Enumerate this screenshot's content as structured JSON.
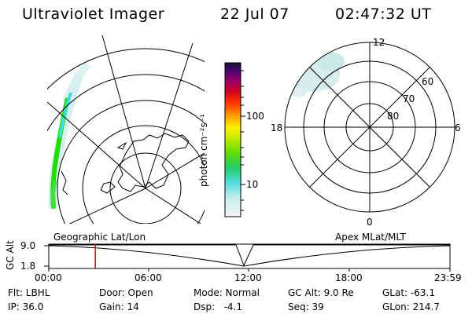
{
  "header": {
    "title": "Ultraviolet Imager",
    "date": "22 Jul 07",
    "time": "02:47:32 UT"
  },
  "colorbar": {
    "unit_label": "photon cm⁻²s⁻¹",
    "tick_100": "100",
    "tick_10": "10"
  },
  "polar_plot": {
    "mlt_labels": {
      "top": "12",
      "left": "18",
      "right": "6",
      "bottom": "0"
    },
    "lat_labels": [
      "80",
      "70",
      "60"
    ]
  },
  "timeline": {
    "left_label": "Geographic Lat/Lon",
    "right_label": "Apex MLat/MLT",
    "axis_title": "GC Alt",
    "y_max": "9.0",
    "y_min": "1.8",
    "ticks": [
      "00:00",
      "06:00",
      "12:00",
      "18:00",
      "23:59"
    ],
    "marker_fraction": 0.116
  },
  "status": {
    "flt": "Flt: LBHL",
    "ip": "IP: 36.0",
    "door": "Door: Open",
    "gain": "Gain: 14",
    "mode": "Mode: Normal",
    "dsp": "Dsp:   -4.1",
    "gcalt": "GC Alt: 9.0 Re",
    "seq": "Seq: 39",
    "glat": "GLat: -63.1",
    "glon": "GLon: 214.7"
  },
  "colors": {
    "aurora_green": "#22dd00",
    "aurora_cyan": "#44dddd",
    "marker": "#cc0000"
  }
}
